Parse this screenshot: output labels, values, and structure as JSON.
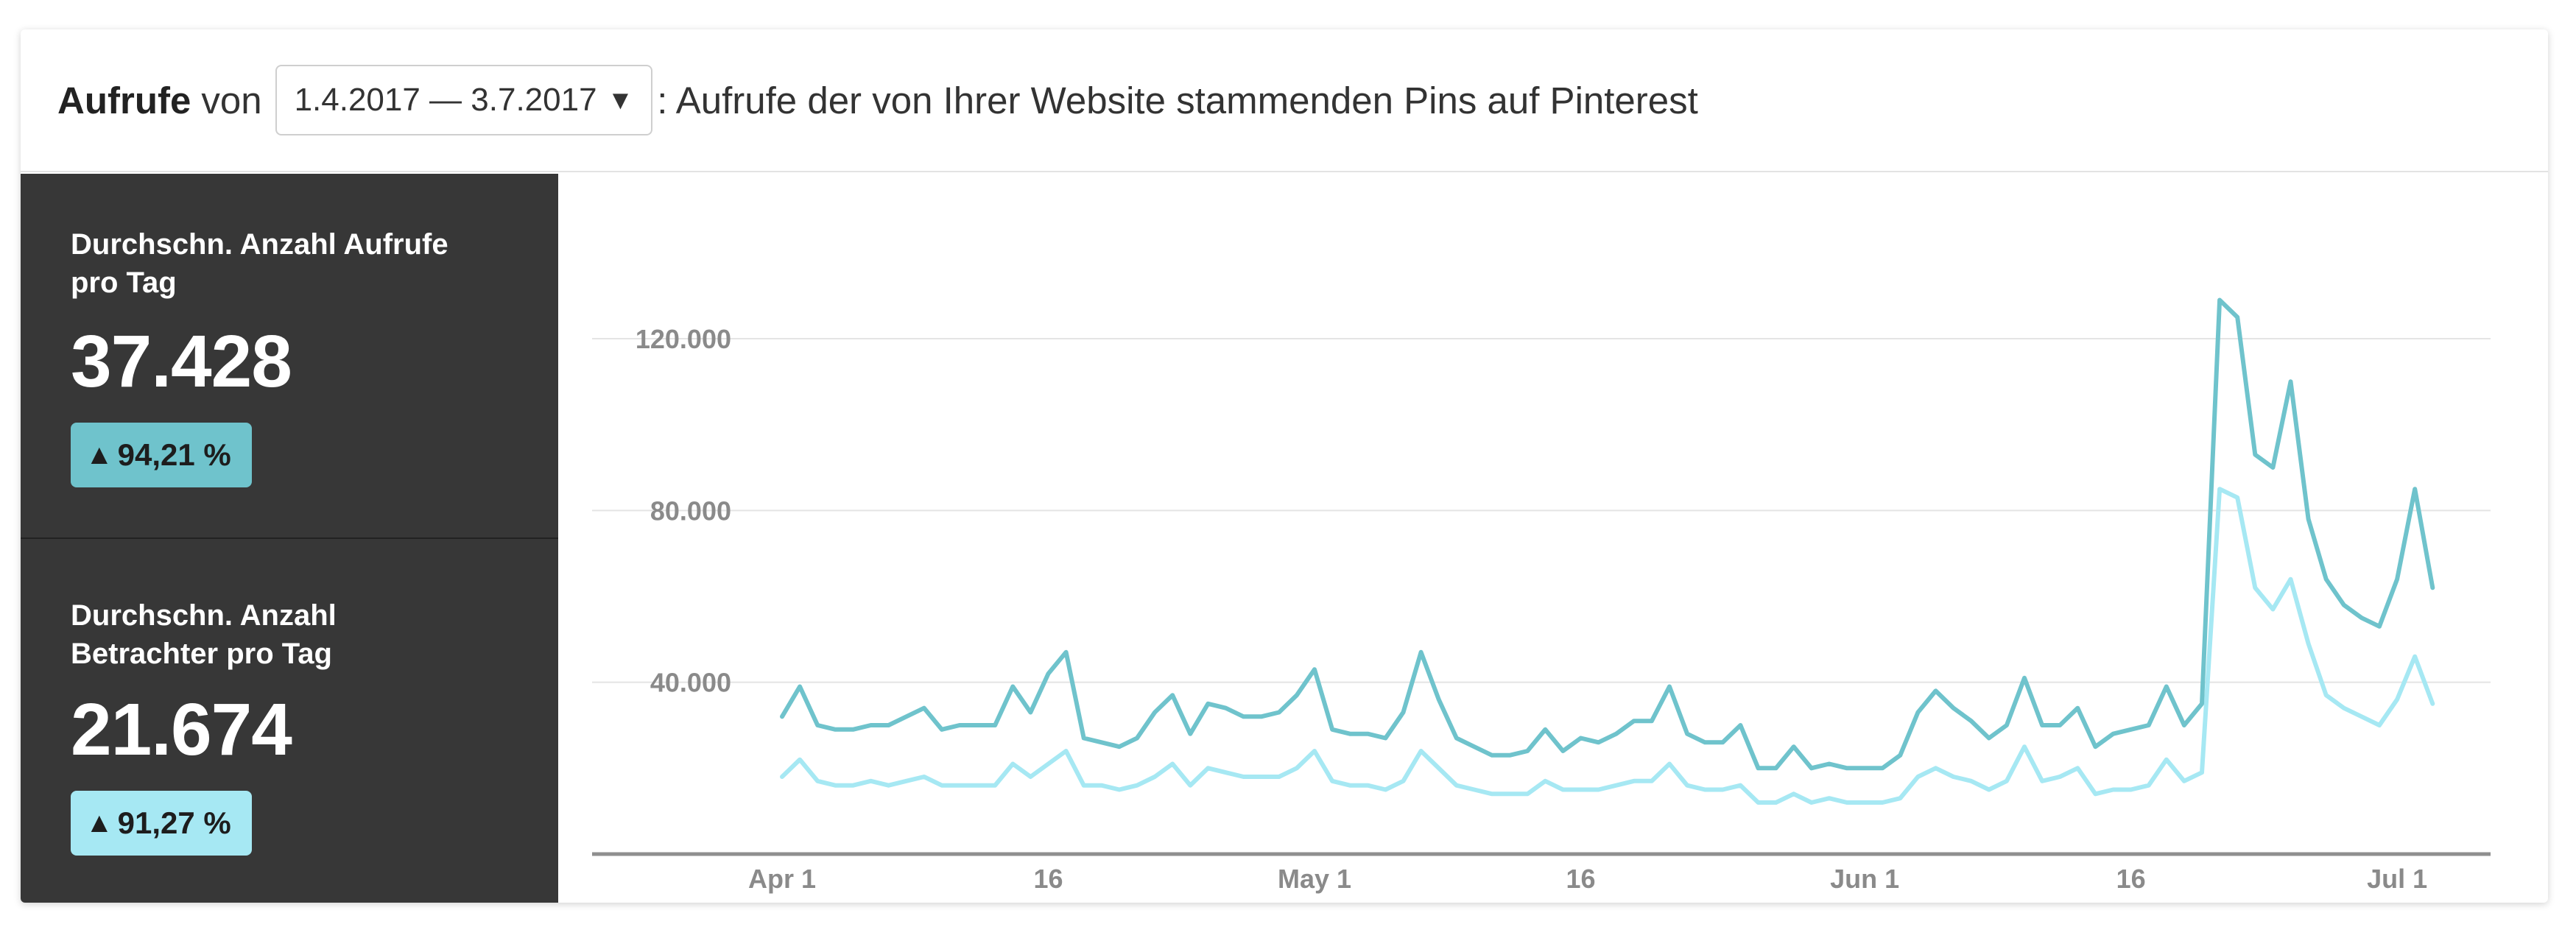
{
  "header": {
    "metric_label": "Aufrufe",
    "von_label": "von",
    "date_range": "1.4.2017 — 3.7.2017",
    "dropdown_caret": "▼",
    "description": ": Aufrufe der von Ihrer Website stammenden Pins auf Pinterest"
  },
  "stats": [
    {
      "label": "Durchschn. Anzahl Aufrufe pro Tag",
      "value": "37.428",
      "change": "94,21 %",
      "color": "#6fc3cc"
    },
    {
      "label": "Durchschn. Anzahl Betrachter pro Tag",
      "value": "21.674",
      "change": "91,27 %",
      "color": "#a6e8f3"
    }
  ],
  "icons": {
    "trend": "arrow-up-icon"
  },
  "chart_data": {
    "type": "line",
    "xlabel": "",
    "ylabel": "",
    "ylim": [
      0,
      140000
    ],
    "grid": true,
    "x_start": "2017-04-01",
    "x_end": "2017-07-03",
    "x_axis_max": "2017-07-15",
    "x_ticks": [
      "Apr 1",
      "16",
      "May 1",
      "16",
      "Jun 1",
      "16",
      "Jul 1"
    ],
    "y_ticks": [
      "40.000",
      "80.000",
      "120.000"
    ],
    "y_tick_values": [
      40000,
      80000,
      120000
    ],
    "series": [
      {
        "color": "#6fc3cc",
        "values": [
          32000,
          39000,
          30000,
          29000,
          29000,
          30000,
          30000,
          32000,
          34000,
          29000,
          30000,
          30000,
          30000,
          39000,
          33000,
          42000,
          47000,
          27000,
          26000,
          25000,
          27000,
          33000,
          37000,
          28000,
          35000,
          34000,
          32000,
          32000,
          33000,
          37000,
          43000,
          29000,
          28000,
          28000,
          27000,
          33000,
          47000,
          36000,
          27000,
          25000,
          23000,
          23000,
          24000,
          29000,
          24000,
          27000,
          26000,
          28000,
          31000,
          31000,
          39000,
          28000,
          26000,
          26000,
          30000,
          20000,
          20000,
          25000,
          20000,
          21000,
          20000,
          20000,
          20000,
          23000,
          33000,
          38000,
          34000,
          31000,
          27000,
          30000,
          41000,
          30000,
          30000,
          34000,
          25000,
          28000,
          29000,
          30000,
          39000,
          30000,
          35000,
          129000,
          125000,
          93000,
          90000,
          110000,
          78000,
          64000,
          58000,
          55000,
          53000,
          64000,
          85000,
          62000
        ]
      },
      {
        "color": "#a6e8f3",
        "values": [
          18000,
          22000,
          17000,
          16000,
          16000,
          17000,
          16000,
          17000,
          18000,
          16000,
          16000,
          16000,
          16000,
          21000,
          18000,
          21000,
          24000,
          16000,
          16000,
          15000,
          16000,
          18000,
          21000,
          16000,
          20000,
          19000,
          18000,
          18000,
          18000,
          20000,
          24000,
          17000,
          16000,
          16000,
          15000,
          17000,
          24000,
          20000,
          16000,
          15000,
          14000,
          14000,
          14000,
          17000,
          15000,
          15000,
          15000,
          16000,
          17000,
          17000,
          21000,
          16000,
          15000,
          15000,
          16000,
          12000,
          12000,
          14000,
          12000,
          13000,
          12000,
          12000,
          12000,
          13000,
          18000,
          20000,
          18000,
          17000,
          15000,
          17000,
          25000,
          17000,
          18000,
          20000,
          14000,
          15000,
          15000,
          16000,
          22000,
          17000,
          19000,
          85000,
          83000,
          62000,
          57000,
          64000,
          49000,
          37000,
          34000,
          32000,
          30000,
          36000,
          46000,
          35000
        ]
      }
    ]
  }
}
